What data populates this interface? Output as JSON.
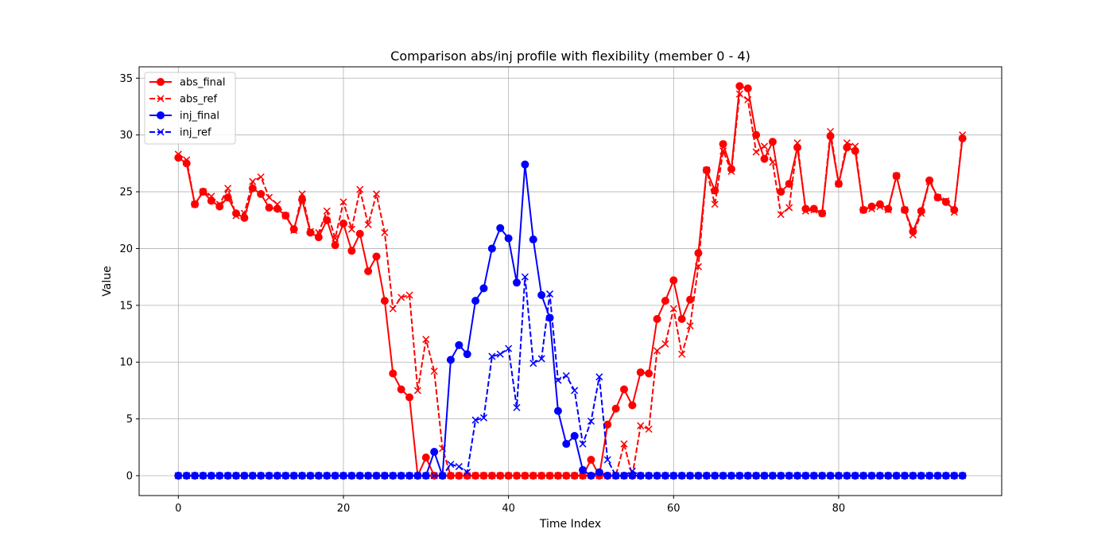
{
  "chart_data": {
    "type": "line",
    "title": "Comparison abs/inj profile with flexibility (member 0 - 4)",
    "xlabel": "Time Index",
    "ylabel": "Value",
    "xlim": [
      -4.75,
      99.75
    ],
    "ylim": [
      -1.75,
      36.0
    ],
    "xticks": [
      0,
      20,
      40,
      60,
      80
    ],
    "yticks": [
      0,
      5,
      10,
      15,
      20,
      25,
      30,
      35
    ],
    "grid": true,
    "legend_position": "upper left",
    "series": [
      {
        "name": "abs_final",
        "color": "#ff0000",
        "linestyle": "solid",
        "marker": "circle",
        "values": [
          28.0,
          27.5,
          23.9,
          25.0,
          24.2,
          23.7,
          24.5,
          23.1,
          22.7,
          25.3,
          24.8,
          23.6,
          23.5,
          22.9,
          21.7,
          24.3,
          21.4,
          21.0,
          22.5,
          20.3,
          22.2,
          19.8,
          21.3,
          18.0,
          19.3,
          15.4,
          9.0,
          7.6,
          6.9,
          0.0,
          1.6,
          0.0,
          0.0,
          0.0,
          0.0,
          0.0,
          0.0,
          0.0,
          0.0,
          0.0,
          0.0,
          0.0,
          0.0,
          0.0,
          0.0,
          0.0,
          0.0,
          0.0,
          0.0,
          0.0,
          1.4,
          0.0,
          4.5,
          5.9,
          7.6,
          6.2,
          9.1,
          9.0,
          13.8,
          15.4,
          17.2,
          13.8,
          15.5,
          19.6,
          26.9,
          25.1,
          29.2,
          27.0,
          34.3,
          34.1,
          30.0,
          27.9,
          29.4,
          25.0,
          25.7,
          28.9,
          23.5,
          23.5,
          23.1,
          29.9,
          25.7,
          28.9,
          28.6,
          23.4,
          23.7,
          23.9,
          23.5,
          26.4,
          23.4,
          21.5,
          23.3,
          26.0,
          24.5,
          24.1,
          23.4,
          29.7
        ]
      },
      {
        "name": "abs_ref",
        "color": "#ff0000",
        "linestyle": "dashed",
        "marker": "x",
        "values": [
          28.3,
          27.8,
          23.9,
          25.0,
          24.6,
          23.9,
          25.3,
          22.9,
          23.1,
          25.9,
          26.3,
          24.5,
          23.9,
          22.9,
          21.6,
          24.8,
          21.5,
          21.4,
          23.3,
          20.9,
          24.1,
          21.7,
          25.2,
          22.1,
          24.8,
          21.4,
          14.7,
          15.7,
          15.9,
          7.5,
          12.0,
          9.2,
          2.4,
          0.0,
          0.0,
          0.0,
          0.0,
          0.0,
          0.0,
          0.0,
          0.0,
          0.0,
          0.0,
          0.0,
          0.0,
          0.0,
          0.0,
          0.0,
          0.0,
          0.0,
          0.0,
          0.0,
          0.0,
          0.0,
          2.8,
          0.0,
          4.4,
          4.1,
          11.0,
          11.6,
          14.7,
          10.7,
          13.2,
          18.4,
          26.9,
          23.9,
          28.6,
          26.8,
          33.6,
          33.1,
          28.5,
          29.0,
          27.6,
          23.0,
          23.6,
          29.3,
          23.3,
          23.4,
          23.1,
          30.3,
          25.7,
          29.3,
          29.0,
          23.4,
          23.5,
          23.7,
          23.4,
          26.4,
          23.4,
          21.2,
          23.1,
          25.9,
          24.5,
          24.2,
          23.2,
          30.0
        ]
      },
      {
        "name": "inj_final",
        "color": "#0000ff",
        "linestyle": "solid",
        "marker": "circle",
        "values": [
          0.0,
          0.0,
          0.0,
          0.0,
          0.0,
          0.0,
          0.0,
          0.0,
          0.0,
          0.0,
          0.0,
          0.0,
          0.0,
          0.0,
          0.0,
          0.0,
          0.0,
          0.0,
          0.0,
          0.0,
          0.0,
          0.0,
          0.0,
          0.0,
          0.0,
          0.0,
          0.0,
          0.0,
          0.0,
          0.0,
          0.0,
          2.1,
          0.0,
          10.2,
          11.5,
          10.7,
          15.4,
          16.5,
          20.0,
          21.8,
          20.9,
          17.0,
          27.4,
          20.8,
          15.9,
          13.9,
          5.7,
          2.8,
          3.5,
          0.5,
          0.0,
          0.3,
          0.0,
          0.0,
          0.0,
          0.0,
          0.0,
          0.0,
          0.0,
          0.0,
          0.0,
          0.0,
          0.0,
          0.0,
          0.0,
          0.0,
          0.0,
          0.0,
          0.0,
          0.0,
          0.0,
          0.0,
          0.0,
          0.0,
          0.0,
          0.0,
          0.0,
          0.0,
          0.0,
          0.0,
          0.0,
          0.0,
          0.0,
          0.0,
          0.0,
          0.0,
          0.0,
          0.0,
          0.0,
          0.0,
          0.0,
          0.0,
          0.0,
          0.0,
          0.0,
          0.0
        ]
      },
      {
        "name": "inj_ref",
        "color": "#0000ff",
        "linestyle": "dashed",
        "marker": "x",
        "values": [
          0.0,
          0.0,
          0.0,
          0.0,
          0.0,
          0.0,
          0.0,
          0.0,
          0.0,
          0.0,
          0.0,
          0.0,
          0.0,
          0.0,
          0.0,
          0.0,
          0.0,
          0.0,
          0.0,
          0.0,
          0.0,
          0.0,
          0.0,
          0.0,
          0.0,
          0.0,
          0.0,
          0.0,
          0.0,
          0.0,
          0.0,
          0.0,
          0.0,
          1.0,
          0.8,
          0.3,
          4.9,
          5.1,
          10.5,
          10.7,
          11.2,
          6.0,
          17.5,
          9.9,
          10.3,
          16.0,
          8.4,
          8.8,
          7.5,
          2.8,
          4.8,
          8.7,
          1.4,
          0.0,
          0.0,
          0.4,
          0.0,
          0.0,
          0.0,
          0.0,
          0.0,
          0.0,
          0.0,
          0.0,
          0.0,
          0.0,
          0.0,
          0.0,
          0.0,
          0.0,
          0.0,
          0.0,
          0.0,
          0.0,
          0.0,
          0.0,
          0.0,
          0.0,
          0.0,
          0.0,
          0.0,
          0.0,
          0.0,
          0.0,
          0.0,
          0.0,
          0.0,
          0.0,
          0.0,
          0.0,
          0.0,
          0.0,
          0.0,
          0.0,
          0.0,
          0.0
        ]
      }
    ]
  }
}
